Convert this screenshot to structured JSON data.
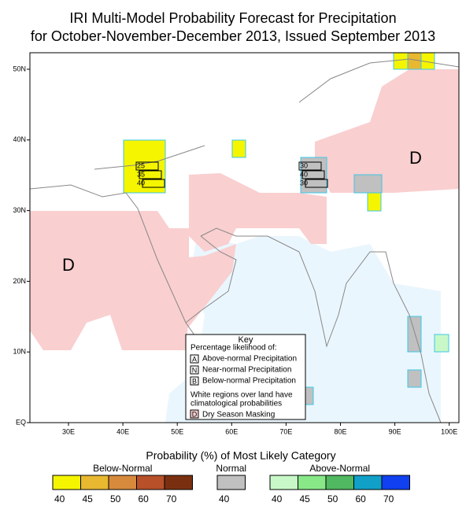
{
  "title": [
    "IRI Multi-Model Probability Forecast for Precipitation",
    "for October-November-December 2013, Issued September 2013"
  ],
  "lat_labels": [
    "50N",
    "40N",
    "30N",
    "20N",
    "10N",
    "EQ"
  ],
  "lon_labels": [
    "30E",
    "40E",
    "50E",
    "60E",
    "70E",
    "80E",
    "90E",
    "100E"
  ],
  "map_labels": [
    "D",
    "D"
  ],
  "point_boxes": [
    [
      "25",
      "35",
      "40"
    ],
    [
      "30",
      "40",
      "30"
    ]
  ],
  "key": {
    "title": "Key",
    "subtitle": "Percentage likelihood of:",
    "rows": [
      {
        "letter": "A",
        "text": "Above-normal Precipitation"
      },
      {
        "letter": "N",
        "text": "Near-normal Precipitation"
      },
      {
        "letter": "B",
        "text": "Below-normal Precipitation"
      }
    ],
    "note": [
      "White regions over land have",
      "climatological probabilities"
    ],
    "mask": {
      "letter": "D",
      "text": "Dry Season Masking"
    }
  },
  "legend": {
    "title": "Probability (%) of Most Likely Category",
    "groups": [
      {
        "name": "Below-Normal",
        "labels": [
          40,
          45,
          50,
          60,
          70
        ],
        "colors": [
          "#f5f500",
          "#e8b830",
          "#d88a3c",
          "#b8502a",
          "#7a3010"
        ]
      },
      {
        "name": "Normal",
        "labels": [
          40
        ],
        "colors": [
          "#c0c0c0"
        ]
      },
      {
        "name": "Above-Normal",
        "labels": [
          40,
          45,
          50,
          60,
          70
        ],
        "colors": [
          "#c8f8c8",
          "#88e888",
          "#50b860",
          "#10a0c8",
          "#1040f0"
        ]
      }
    ]
  }
}
